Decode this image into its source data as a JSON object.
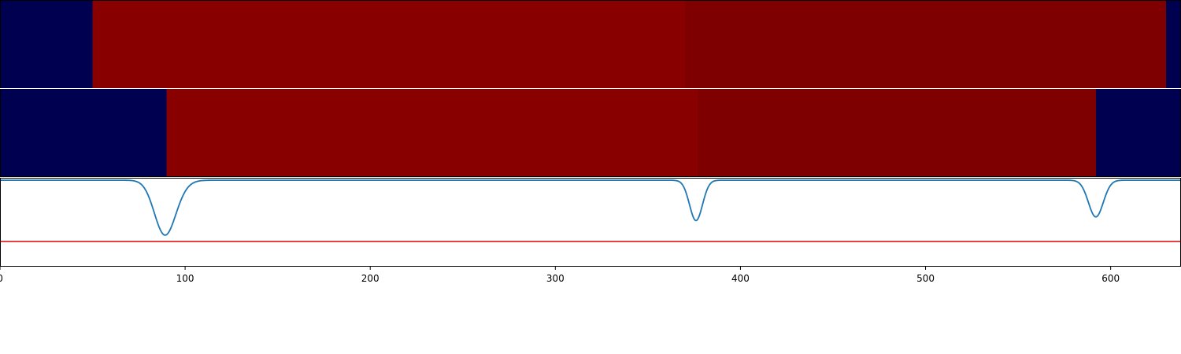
{
  "chart_data": {
    "type": "heatmap",
    "xlim": [
      0,
      638
    ],
    "x_ticks": [
      "0",
      "100",
      "200",
      "300",
      "400",
      "500",
      "600"
    ],
    "x_tick_values": [
      0,
      100,
      200,
      300,
      400,
      500,
      600
    ],
    "grid": false,
    "colors": {
      "low": "#000050",
      "high_a": "#880000",
      "high_b": "#7e0000",
      "line": "#1f77b4",
      "threshold": "#dd0000",
      "frame": "#000000"
    },
    "heatmap_rows": [
      {
        "segments": [
          {
            "start": 0,
            "end": 50,
            "level": "low"
          },
          {
            "start": 50,
            "end": 370,
            "level": "high_a"
          },
          {
            "start": 370,
            "end": 630,
            "level": "high_b"
          },
          {
            "start": 630,
            "end": 638,
            "level": "low"
          }
        ]
      },
      {
        "segments": [
          {
            "start": 0,
            "end": 90,
            "level": "low"
          },
          {
            "start": 90,
            "end": 377,
            "level": "high_a"
          },
          {
            "start": 377,
            "end": 592,
            "level": "high_b"
          },
          {
            "start": 592,
            "end": 638,
            "level": "low"
          }
        ]
      }
    ],
    "line": {
      "ylim": [
        -0.7,
        0.02
      ],
      "baseline": 0,
      "threshold": -0.5,
      "dips": [
        {
          "center": 88.5,
          "depth": -0.37,
          "width": 5.5,
          "shoulder": {
            "offset": 4.5,
            "depth": -0.1,
            "width": 6
          }
        },
        {
          "center": 376,
          "depth": -0.33,
          "width": 3.5
        },
        {
          "center": 592,
          "depth": -0.3,
          "width": 4
        }
      ]
    }
  }
}
